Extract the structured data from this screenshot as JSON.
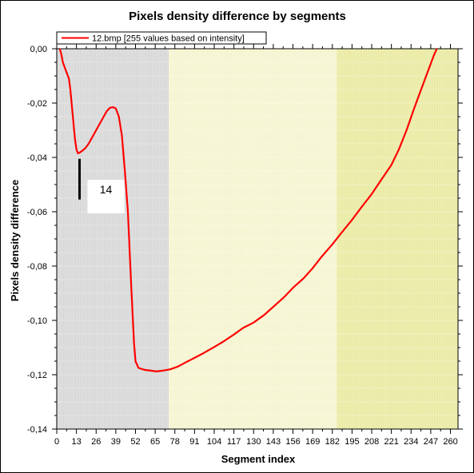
{
  "chart_data": {
    "type": "line",
    "title": "Pixels density difference by segments",
    "xlabel": "Segment index",
    "ylabel": "Pixels density difference",
    "xlim": [
      0,
      265
    ],
    "ylim": [
      -0.14,
      0
    ],
    "x_ticks": [
      0,
      13,
      26,
      39,
      52,
      65,
      78,
      91,
      104,
      117,
      130,
      143,
      156,
      169,
      182,
      195,
      208,
      221,
      234,
      247,
      260
    ],
    "y_ticks": [
      {
        "value": 0,
        "label": "0,00"
      },
      {
        "value": -0.02,
        "label": "-0,02"
      },
      {
        "value": -0.04,
        "label": "-0,04"
      },
      {
        "value": -0.06,
        "label": "-0,06"
      },
      {
        "value": -0.08,
        "label": "-0,08"
      },
      {
        "value": -0.1,
        "label": "-0,10"
      },
      {
        "value": -0.12,
        "label": "-0,12"
      },
      {
        "value": -0.14,
        "label": "-0,14"
      }
    ],
    "grid": true,
    "legend": "top-left",
    "shaded_regions": [
      {
        "x_from": 0,
        "x_to": 74,
        "color": "#d4d4d4"
      },
      {
        "x_from": 74,
        "x_to": 185,
        "color": "#f4f4cc"
      },
      {
        "x_from": 185,
        "x_to": 265,
        "color": "#e8e89a"
      }
    ],
    "series": [
      {
        "name": "12.bmp [255 values based on intensity]",
        "color": "#ff0000",
        "points": [
          [
            2,
            0.0
          ],
          [
            3,
            -0.002
          ],
          [
            4,
            -0.005
          ],
          [
            6,
            -0.008
          ],
          [
            8,
            -0.011
          ],
          [
            9,
            -0.015
          ],
          [
            10,
            -0.021
          ],
          [
            11,
            -0.027
          ],
          [
            12,
            -0.033
          ],
          [
            13,
            -0.037
          ],
          [
            14,
            -0.0385
          ],
          [
            15,
            -0.0383
          ],
          [
            17,
            -0.0375
          ],
          [
            19,
            -0.0365
          ],
          [
            21,
            -0.035
          ],
          [
            24,
            -0.032
          ],
          [
            27,
            -0.029
          ],
          [
            30,
            -0.026
          ],
          [
            33,
            -0.023
          ],
          [
            35,
            -0.0218
          ],
          [
            37,
            -0.0215
          ],
          [
            39,
            -0.022
          ],
          [
            41,
            -0.025
          ],
          [
            43,
            -0.032
          ],
          [
            45,
            -0.045
          ],
          [
            47,
            -0.06
          ],
          [
            49,
            -0.085
          ],
          [
            51,
            -0.108
          ],
          [
            52,
            -0.115
          ],
          [
            54,
            -0.1175
          ],
          [
            58,
            -0.1182
          ],
          [
            62,
            -0.1185
          ],
          [
            66,
            -0.1188
          ],
          [
            70,
            -0.1185
          ],
          [
            75,
            -0.118
          ],
          [
            80,
            -0.117
          ],
          [
            85,
            -0.1155
          ],
          [
            91,
            -0.1138
          ],
          [
            97,
            -0.112
          ],
          [
            104,
            -0.1098
          ],
          [
            110,
            -0.1078
          ],
          [
            117,
            -0.1052
          ],
          [
            123,
            -0.1028
          ],
          [
            130,
            -0.1008
          ],
          [
            137,
            -0.098
          ],
          [
            143,
            -0.095
          ],
          [
            150,
            -0.0915
          ],
          [
            156,
            -0.088
          ],
          [
            163,
            -0.0845
          ],
          [
            169,
            -0.0808
          ],
          [
            175,
            -0.0765
          ],
          [
            182,
            -0.072
          ],
          [
            188,
            -0.0678
          ],
          [
            195,
            -0.063
          ],
          [
            201,
            -0.0585
          ],
          [
            208,
            -0.0535
          ],
          [
            214,
            -0.0485
          ],
          [
            221,
            -0.0428
          ],
          [
            226,
            -0.037
          ],
          [
            231,
            -0.03
          ],
          [
            236,
            -0.022
          ],
          [
            241,
            -0.0145
          ],
          [
            245,
            -0.0085
          ],
          [
            249,
            -0.0025
          ],
          [
            251,
            0.0
          ]
        ]
      }
    ],
    "marker": {
      "x": 14,
      "label": "14",
      "y_from": -0.0405,
      "y_to": -0.0555
    }
  }
}
